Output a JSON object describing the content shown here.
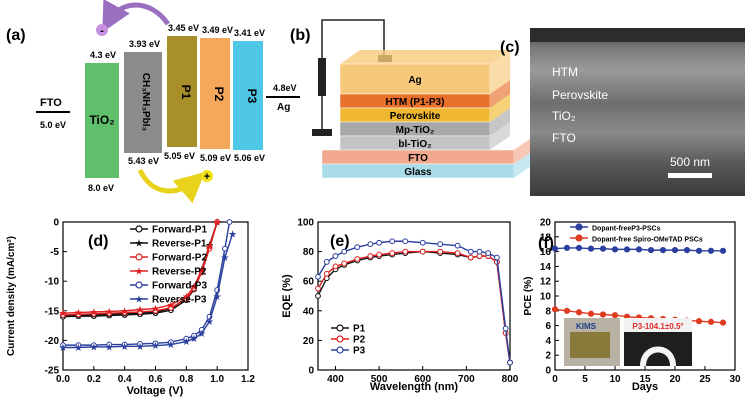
{
  "panel_a": {
    "label": "(a)",
    "fto": {
      "name": "FTO",
      "level": "5.0 eV"
    },
    "tio2": {
      "name": "TiO₂",
      "top": "4.3 eV",
      "bottom": "8.0 eV",
      "color": "#5fbf6a"
    },
    "perov": {
      "name": "CH₃NH₃PbI₃",
      "top": "3.93 eV",
      "bottom": "5.43 eV",
      "color": "#8c8c8c"
    },
    "p1": {
      "name": "P1",
      "top": "3.45 eV",
      "bottom": "5.05 eV",
      "color": "#a88f2a"
    },
    "p2": {
      "name": "P2",
      "top": "3.49 eV",
      "bottom": "5.09 eV",
      "color": "#f5a85a"
    },
    "p3": {
      "name": "P3",
      "top": "3.41 eV",
      "bottom": "5.06 eV",
      "color": "#4fc8e8"
    },
    "ag": {
      "name": "Ag",
      "level": "4.8eV"
    },
    "electron": "-",
    "hole": "+"
  },
  "panel_b": {
    "label": "(b)",
    "layers": [
      {
        "name": "Ag",
        "color": "#f6c97a"
      },
      {
        "name": "HTM (P1-P3)",
        "color": "#e8702a"
      },
      {
        "name": "Perovskite",
        "color": "#f0b830"
      },
      {
        "name": "Mp-TiO₂",
        "color": "#a8a8a8"
      },
      {
        "name": "bl-TiO₂",
        "color": "#c4c4c4"
      },
      {
        "name": "FTO",
        "color": "#f2a98e"
      },
      {
        "name": "Glass",
        "color": "#a9dbe9"
      }
    ]
  },
  "panel_c": {
    "label": "(c)",
    "labels": [
      "HTM",
      "Perovskite",
      "TiO₂",
      "FTO"
    ],
    "scale_bar": "500 nm"
  },
  "chart_data": [
    {
      "panel": "(d)",
      "type": "line",
      "xlabel": "Voltage (V)",
      "ylabel": "Current density (mA/cm²)",
      "xlim": [
        0.0,
        1.2
      ],
      "ylim": [
        -25,
        0
      ],
      "xticks": [
        "0.0",
        "0.2",
        "0.4",
        "0.6",
        "0.8",
        "1.0",
        "1.2"
      ],
      "yticks": [
        "-25",
        "-20",
        "-15",
        "-10",
        "-5",
        "0"
      ],
      "series": [
        {
          "name": "Forward-P1",
          "color": "#111111",
          "marker": "circle",
          "x": [
            0,
            0.1,
            0.2,
            0.3,
            0.4,
            0.5,
            0.6,
            0.7,
            0.8,
            0.85,
            0.9,
            0.95,
            1.0
          ],
          "y": [
            -16.0,
            -15.9,
            -15.9,
            -15.8,
            -15.7,
            -15.6,
            -15.4,
            -14.9,
            -13.2,
            -11.4,
            -8.4,
            -4.3,
            0
          ]
        },
        {
          "name": "Reverse-P1",
          "color": "#111111",
          "marker": "star",
          "x": [
            0,
            0.1,
            0.2,
            0.3,
            0.4,
            0.5,
            0.6,
            0.7,
            0.8,
            0.85,
            0.9,
            0.95,
            1.0
          ],
          "y": [
            -15.8,
            -15.8,
            -15.7,
            -15.6,
            -15.5,
            -15.4,
            -15.2,
            -14.6,
            -12.9,
            -11.0,
            -8.0,
            -3.9,
            0
          ]
        },
        {
          "name": "Forward-P2",
          "color": "#e02020",
          "marker": "circle",
          "x": [
            0,
            0.1,
            0.2,
            0.3,
            0.4,
            0.5,
            0.6,
            0.7,
            0.8,
            0.85,
            0.9,
            0.95,
            1.0
          ],
          "y": [
            -15.7,
            -15.6,
            -15.5,
            -15.4,
            -15.3,
            -15.2,
            -15.0,
            -14.5,
            -13.0,
            -11.2,
            -8.5,
            -4.5,
            0
          ]
        },
        {
          "name": "Reverse-P2",
          "color": "#e02020",
          "marker": "star",
          "x": [
            0,
            0.1,
            0.2,
            0.3,
            0.4,
            0.5,
            0.6,
            0.7,
            0.8,
            0.85,
            0.9,
            0.95,
            1.0
          ],
          "y": [
            -15.4,
            -15.3,
            -15.2,
            -15.1,
            -15.0,
            -14.8,
            -14.6,
            -14.0,
            -12.6,
            -10.9,
            -8.1,
            -4.1,
            0
          ]
        },
        {
          "name": "Forward-P3",
          "color": "#2a3f9e",
          "marker": "circle",
          "x": [
            0,
            0.1,
            0.2,
            0.3,
            0.4,
            0.5,
            0.6,
            0.7,
            0.8,
            0.85,
            0.9,
            0.95,
            1.0,
            1.05,
            1.08
          ],
          "y": [
            -20.8,
            -20.8,
            -20.8,
            -20.7,
            -20.7,
            -20.6,
            -20.5,
            -20.3,
            -19.7,
            -19.2,
            -18.2,
            -16.0,
            -11.5,
            -4.5,
            0
          ]
        },
        {
          "name": "Reverse-P3",
          "color": "#2a3f9e",
          "marker": "star",
          "x": [
            0,
            0.1,
            0.2,
            0.3,
            0.4,
            0.5,
            0.6,
            0.7,
            0.8,
            0.85,
            0.9,
            0.95,
            1.0,
            1.05,
            1.1
          ],
          "y": [
            -21.2,
            -21.2,
            -21.1,
            -21.1,
            -21.0,
            -21.0,
            -20.9,
            -20.7,
            -20.2,
            -19.7,
            -18.8,
            -16.8,
            -12.6,
            -6.0,
            -2.0
          ]
        }
      ]
    },
    {
      "panel": "(e)",
      "type": "line",
      "xlabel": "Wavelength (nm)",
      "ylabel": "EQE (%)",
      "xlim": [
        360,
        800
      ],
      "ylim": [
        0,
        100
      ],
      "xticks": [
        "400",
        "500",
        "600",
        "700",
        "800"
      ],
      "yticks": [
        "0",
        "20",
        "40",
        "60",
        "80",
        "100"
      ],
      "series": [
        {
          "name": "P1",
          "color": "#111111",
          "x": [
            360,
            380,
            400,
            420,
            450,
            480,
            500,
            530,
            560,
            600,
            640,
            680,
            710,
            730,
            750,
            770,
            790,
            800
          ],
          "y": [
            50,
            62,
            68,
            71,
            74,
            76,
            77,
            78,
            79,
            80,
            79,
            78,
            76,
            77,
            77,
            73,
            25,
            5
          ]
        },
        {
          "name": "P2",
          "color": "#e02020",
          "x": [
            360,
            380,
            400,
            420,
            450,
            480,
            500,
            530,
            560,
            600,
            640,
            680,
            710,
            730,
            750,
            770,
            790,
            800
          ],
          "y": [
            55,
            65,
            70,
            72,
            75,
            77,
            78,
            79,
            80,
            80,
            80,
            79,
            76,
            77,
            77,
            73,
            25,
            5
          ]
        },
        {
          "name": "P3",
          "color": "#2a3f9e",
          "x": [
            360,
            380,
            400,
            420,
            450,
            480,
            500,
            530,
            560,
            600,
            640,
            680,
            710,
            730,
            750,
            770,
            790,
            800
          ],
          "y": [
            63,
            73,
            77,
            80,
            83,
            85,
            86,
            87,
            87,
            86,
            85,
            84,
            80,
            80,
            79,
            76,
            28,
            5
          ]
        }
      ]
    },
    {
      "panel": "(f)",
      "type": "line",
      "xlabel": "Days",
      "ylabel": "PCE (%)",
      "xlim": [
        0,
        30
      ],
      "ylim": [
        0,
        20
      ],
      "xticks": [
        "0",
        "5",
        "10",
        "15",
        "20",
        "25",
        "30"
      ],
      "yticks": [
        "0",
        "2",
        "4",
        "6",
        "8",
        "10",
        "12",
        "14",
        "16",
        "18",
        "20"
      ],
      "series": [
        {
          "name": "Dopant-freeP3-PSCs",
          "color": "#2a3f9e",
          "x": [
            0,
            2,
            4,
            6,
            8,
            10,
            12,
            14,
            16,
            18,
            20,
            22,
            24,
            26,
            28
          ],
          "y": [
            16.4,
            16.5,
            16.5,
            16.4,
            16.4,
            16.3,
            16.3,
            16.3,
            16.2,
            16.2,
            16.2,
            16.2,
            16.1,
            16.1,
            16.1
          ]
        },
        {
          "name": "Dopant-free Spiro-OMeTAD PSCs",
          "color": "#e03a20",
          "x": [
            0,
            2,
            4,
            6,
            8,
            10,
            12,
            14,
            16,
            18,
            20,
            22,
            24,
            26,
            28
          ],
          "y": [
            8.2,
            8.0,
            7.8,
            7.6,
            7.5,
            7.4,
            7.2,
            7.1,
            7.0,
            6.9,
            6.8,
            6.7,
            6.6,
            6.5,
            6.4
          ]
        }
      ],
      "inset": {
        "logo": "KIMS",
        "caption": "P3-104.1±0.5°"
      }
    }
  ]
}
